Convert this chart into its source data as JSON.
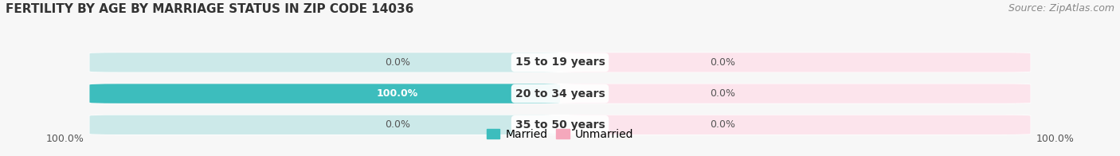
{
  "title": "FERTILITY BY AGE BY MARRIAGE STATUS IN ZIP CODE 14036",
  "source": "Source: ZipAtlas.com",
  "categories": [
    "15 to 19 years",
    "20 to 34 years",
    "35 to 50 years"
  ],
  "married_values": [
    0.0,
    100.0,
    0.0
  ],
  "unmarried_values": [
    0.0,
    0.0,
    0.0
  ],
  "married_color": "#3dbdbd",
  "unmarried_color": "#f5a8bc",
  "bar_bg_married": "#cce9e9",
  "bar_bg_unmarried": "#fce4ec",
  "label_left": [
    "0.0%",
    "100.0%",
    "0.0%"
  ],
  "label_right": [
    "0.0%",
    "0.0%",
    "0.0%"
  ],
  "legend_married": "Married",
  "legend_unmarried": "Unmarried",
  "bottom_left_label": "100.0%",
  "bottom_right_label": "100.0%",
  "title_fontsize": 11,
  "source_fontsize": 9,
  "bar_label_fontsize": 10,
  "value_fontsize": 9,
  "legend_fontsize": 10,
  "background_color": "#f7f7f7",
  "bar_row_bg": "#efefef"
}
